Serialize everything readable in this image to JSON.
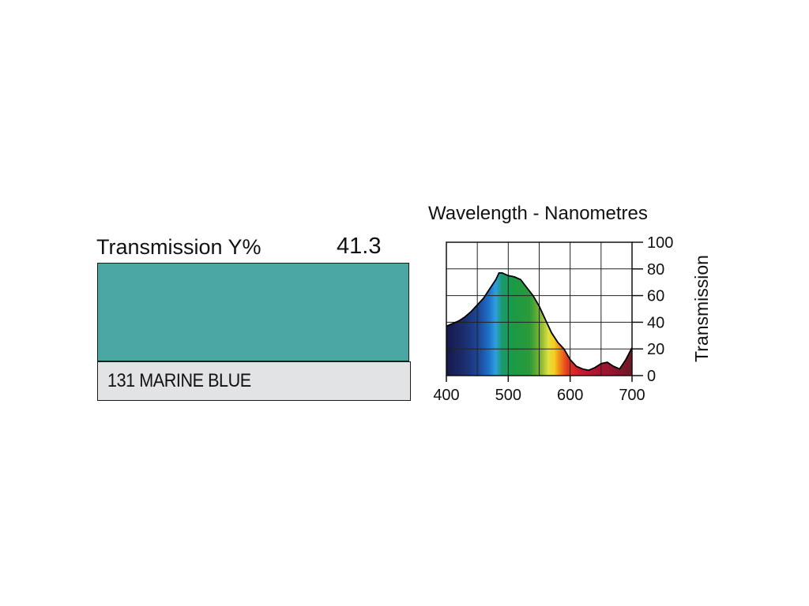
{
  "filter": {
    "transmission_label": "Transmission Y%",
    "transmission_value": "41.3",
    "name": "131 MARINE BLUE",
    "swatch_color": "#4aa7a2"
  },
  "chart_data": {
    "type": "area",
    "title": "Wavelength - Nanometres",
    "xlabel": "Wavelength - Nanometres",
    "ylabel": "Transmission",
    "xlim": [
      400,
      700
    ],
    "ylim": [
      0,
      100
    ],
    "x_ticks": [
      400,
      500,
      600,
      700
    ],
    "y_ticks": [
      0,
      20,
      40,
      60,
      80,
      100
    ],
    "grid": true,
    "fill": "visible spectrum gradient",
    "x": [
      400,
      410,
      420,
      430,
      440,
      450,
      460,
      470,
      480,
      485,
      490,
      500,
      510,
      520,
      530,
      540,
      550,
      560,
      570,
      580,
      590,
      600,
      610,
      620,
      630,
      640,
      650,
      660,
      670,
      680,
      690,
      700
    ],
    "y": [
      37,
      39,
      41,
      44,
      48,
      53,
      58,
      65,
      72,
      77,
      77,
      75,
      74,
      72,
      66,
      60,
      52,
      42,
      32,
      25,
      20,
      12,
      7,
      5,
      4,
      6,
      9,
      10,
      7,
      5,
      12,
      21
    ]
  }
}
